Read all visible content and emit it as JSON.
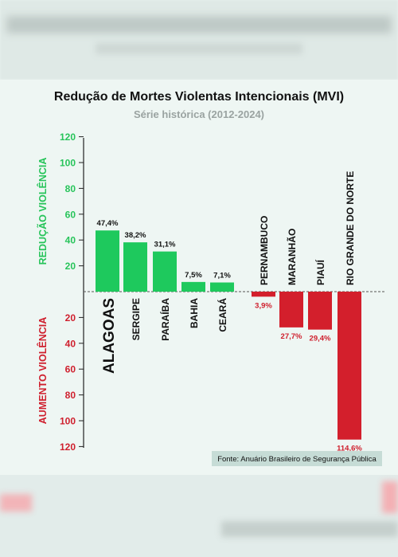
{
  "chart_data": {
    "type": "bar",
    "title": "Redução de Mortes Violentas Intencionais (MVI)",
    "subtitle": "Série histórica (2012-2024)",
    "ylabel_top": "REDUÇÃO VIOLÊNCIA",
    "ylabel_bottom": "AUMENTO VIOLÊNCIA",
    "yticks": [
      "120",
      "100",
      "80",
      "60",
      "40",
      "20",
      "20",
      "40",
      "60",
      "80",
      "100",
      "120"
    ],
    "ylim": [
      -120,
      120
    ],
    "categories": [
      "ALAGOAS",
      "SERGIPE",
      "PARAÍBA",
      "BAHIA",
      "CEARÁ",
      "PERNAMBUCO",
      "MARANHÃO",
      "PIAUÍ",
      "RIO GRANDE DO NORTE"
    ],
    "values": [
      47.4,
      38.2,
      31.1,
      7.5,
      7.1,
      -3.9,
      -27.7,
      -29.4,
      -114.6
    ],
    "value_labels": [
      "47,4%",
      "38,2%",
      "31,1%",
      "7,5%",
      "7,1%",
      "3,9%",
      "27,7%",
      "29,4%",
      "114,6%"
    ],
    "colors": {
      "positive": "#1ec95d",
      "negative": "#d31f2c",
      "green_text": "#27c45a",
      "red_text": "#cf1f2d"
    },
    "source": "Fonte: Anuário Brasileiro de Segurança Pública"
  }
}
